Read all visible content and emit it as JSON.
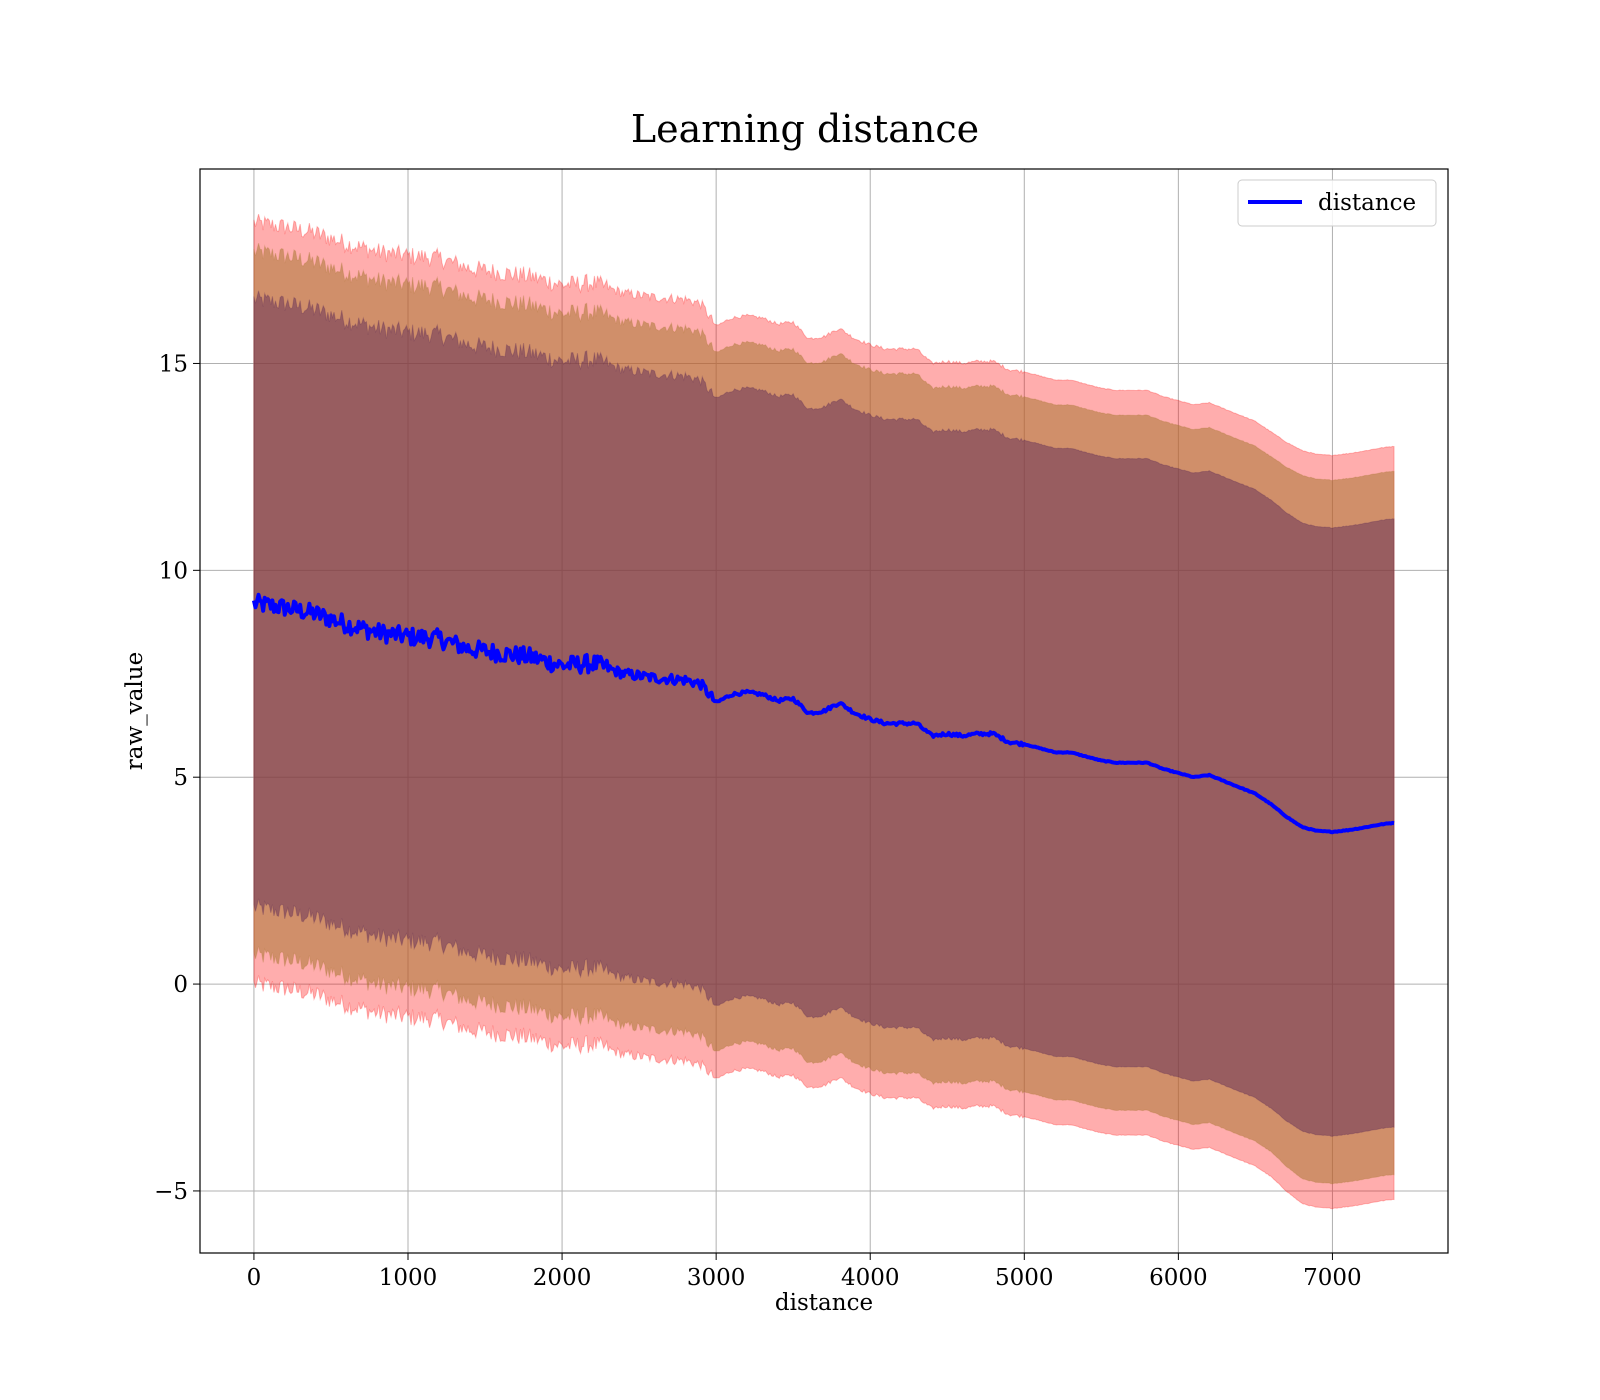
{
  "chart_data": {
    "type": "line",
    "title": "Learning distance",
    "xlabel": "distance",
    "ylabel": "raw_value",
    "xlim": [
      -350,
      7750
    ],
    "ylim": [
      -6.5,
      19.7
    ],
    "x_ticks": [
      0,
      1000,
      2000,
      3000,
      4000,
      5000,
      6000,
      7000
    ],
    "y_ticks": [
      -5,
      0,
      5,
      10,
      15
    ],
    "y_tick_labels": [
      "−5",
      "0",
      "5",
      "10",
      "15"
    ],
    "grid": true,
    "legend": {
      "position": "top-right",
      "entries": [
        "distance"
      ]
    },
    "colors": {
      "line": "#0000ff",
      "band_outer": "#ff0000",
      "band_middle": "#aa7733",
      "band_inner": "#552255",
      "grid": "#b0b0b0"
    },
    "x": [
      0,
      200,
      400,
      600,
      800,
      1000,
      1200,
      1400,
      1600,
      1800,
      2000,
      2200,
      2400,
      2600,
      2800,
      2900,
      3000,
      3100,
      3200,
      3300,
      3400,
      3500,
      3600,
      3700,
      3800,
      3900,
      4000,
      4100,
      4200,
      4300,
      4400,
      4500,
      4600,
      4700,
      4800,
      4900,
      5000,
      5100,
      5200,
      5300,
      5400,
      5500,
      5600,
      5700,
      5800,
      5900,
      6000,
      6100,
      6200,
      6300,
      6400,
      6500,
      6600,
      6700,
      6800,
      6900,
      7000,
      7100,
      7200,
      7300,
      7400
    ],
    "series": [
      {
        "name": "distance",
        "values": [
          9.2,
          9.1,
          8.95,
          8.7,
          8.5,
          8.4,
          8.35,
          8.1,
          8.0,
          7.9,
          7.7,
          7.75,
          7.5,
          7.4,
          7.35,
          7.25,
          6.8,
          7.0,
          7.05,
          7.0,
          6.85,
          6.9,
          6.55,
          6.6,
          6.8,
          6.55,
          6.4,
          6.3,
          6.3,
          6.3,
          6.0,
          6.05,
          6.0,
          6.05,
          6.05,
          5.85,
          5.8,
          5.7,
          5.6,
          5.6,
          5.5,
          5.4,
          5.35,
          5.35,
          5.35,
          5.2,
          5.1,
          5.0,
          5.05,
          4.9,
          4.75,
          4.6,
          4.35,
          4.05,
          3.8,
          3.7,
          3.68,
          3.72,
          3.78,
          3.85,
          3.9
        ]
      }
    ],
    "band_half_widths": [
      {
        "name": "outer",
        "values": [
          9.2,
          9.2,
          9.2,
          9.2,
          9.2,
          9.2,
          9.2,
          9.2,
          9.2,
          9.2,
          9.2,
          9.2,
          9.2,
          9.2,
          9.2,
          9.2,
          9.1,
          9.1,
          9.1,
          9.1,
          9.1,
          9.1,
          9.05,
          9.05,
          9.05,
          9.05,
          9.05,
          9.05,
          9.05,
          9.05,
          9.0,
          9.0,
          9.0,
          9.0,
          9.0,
          9.0,
          9.0,
          9.0,
          9.0,
          9.0,
          9.0,
          9.0,
          9.0,
          9.0,
          9.0,
          9.0,
          9.0,
          9.0,
          9.0,
          9.0,
          9.0,
          9.0,
          9.0,
          9.05,
          9.1,
          9.1,
          9.1,
          9.1,
          9.1,
          9.1,
          9.1
        ]
      },
      {
        "name": "middle",
        "values": [
          8.5,
          8.5,
          8.5,
          8.5,
          8.5,
          8.5,
          8.5,
          8.5,
          8.5,
          8.5,
          8.5,
          8.5,
          8.5,
          8.5,
          8.5,
          8.5,
          8.45,
          8.45,
          8.45,
          8.45,
          8.45,
          8.45,
          8.45,
          8.45,
          8.45,
          8.45,
          8.45,
          8.45,
          8.45,
          8.45,
          8.4,
          8.4,
          8.4,
          8.4,
          8.4,
          8.4,
          8.4,
          8.4,
          8.4,
          8.4,
          8.4,
          8.4,
          8.4,
          8.4,
          8.4,
          8.4,
          8.4,
          8.4,
          8.4,
          8.4,
          8.4,
          8.4,
          8.4,
          8.45,
          8.5,
          8.5,
          8.5,
          8.5,
          8.5,
          8.5,
          8.5
        ]
      },
      {
        "name": "inner",
        "values": [
          7.35,
          7.35,
          7.35,
          7.35,
          7.35,
          7.35,
          7.35,
          7.35,
          7.35,
          7.35,
          7.35,
          7.35,
          7.35,
          7.35,
          7.35,
          7.35,
          7.35,
          7.35,
          7.35,
          7.35,
          7.35,
          7.35,
          7.35,
          7.35,
          7.35,
          7.35,
          7.35,
          7.35,
          7.35,
          7.35,
          7.35,
          7.35,
          7.35,
          7.35,
          7.35,
          7.35,
          7.35,
          7.35,
          7.35,
          7.35,
          7.35,
          7.35,
          7.35,
          7.35,
          7.35,
          7.35,
          7.35,
          7.35,
          7.35,
          7.35,
          7.35,
          7.35,
          7.35,
          7.35,
          7.35,
          7.35,
          7.35,
          7.35,
          7.35,
          7.35,
          7.35
        ]
      }
    ]
  }
}
